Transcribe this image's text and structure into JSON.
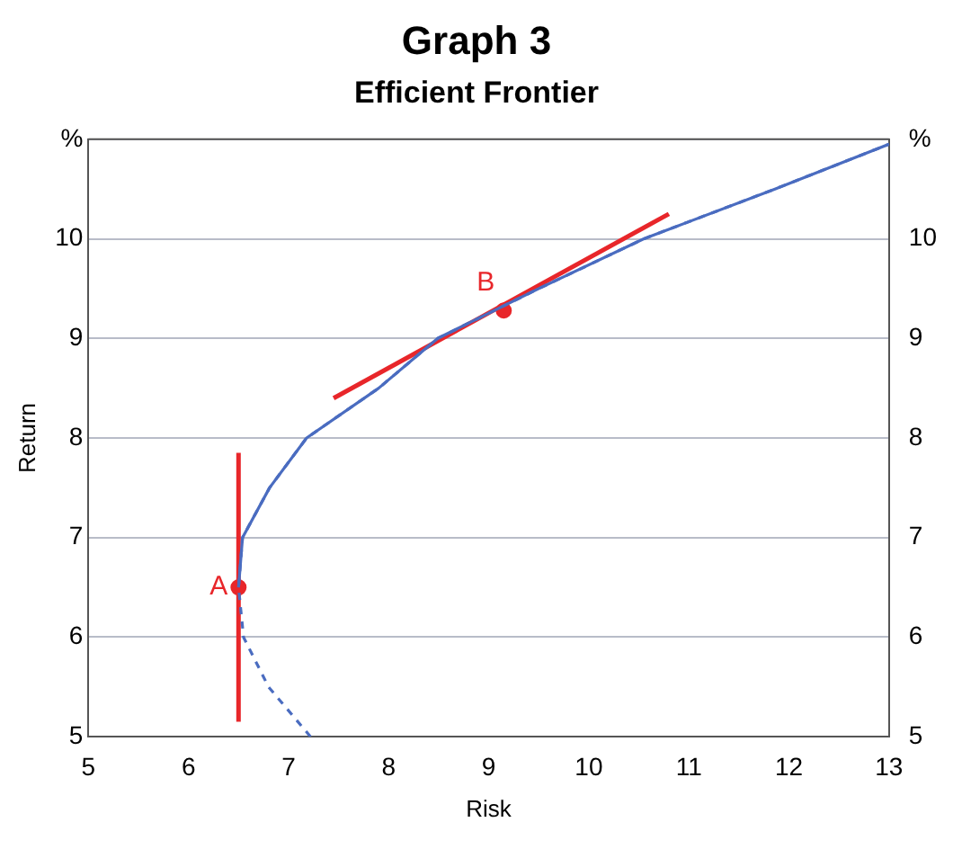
{
  "chart_data": {
    "type": "line",
    "title": "Graph 3",
    "subtitle": "Efficient Frontier",
    "xlabel": "Risk",
    "ylabel": "Return",
    "xlim": [
      5,
      13
    ],
    "xticks": [
      5,
      6,
      7,
      8,
      9,
      10,
      11,
      12,
      13
    ],
    "ylim": [
      5,
      11
    ],
    "yticks": [
      5,
      6,
      7,
      8,
      9,
      10,
      {
        "value": 11,
        "label": "%"
      }
    ],
    "y2lim": [
      5,
      11
    ],
    "y2ticks": [
      5,
      6,
      7,
      8,
      9,
      10,
      {
        "value": 11,
        "label": "%"
      }
    ],
    "grid": "y",
    "legend": false,
    "series": [
      {
        "type": "line",
        "color": "#4a6cc0",
        "line_style": "dashed",
        "x": [
          7.22,
          6.8,
          6.55,
          6.5,
          6.54,
          6.81,
          7.18,
          7.9,
          8.49,
          9.5,
          10.55,
          11.86,
          13
        ],
        "values": [
          5,
          5.5,
          6,
          6.5,
          7,
          7.5,
          8,
          8.5,
          9,
          9.5,
          10,
          10.5,
          10.95
        ]
      },
      {
        "type": "line",
        "color": "#4a6cc0",
        "line_style": "solid",
        "x": [
          6.5,
          6.54,
          6.81,
          7.18,
          7.9,
          8.49,
          9.5,
          10.55,
          11.86,
          13
        ],
        "values": [
          6.5,
          7,
          7.5,
          8,
          8.5,
          9,
          9.5,
          10,
          10.5,
          10.95
        ]
      },
      {
        "type": "line",
        "color": "#e8262a",
        "line_style": "solid",
        "x": [
          6.5,
          6.5
        ],
        "values": [
          5.15,
          7.85
        ]
      },
      {
        "type": "line",
        "color": "#e8262a",
        "line_style": "solid",
        "x": [
          7.45,
          10.8
        ],
        "values": [
          8.4,
          10.25
        ]
      },
      {
        "type": "scatter",
        "color": "#e8262a",
        "marker": "circle",
        "x": [
          6.5
        ],
        "values": [
          6.5
        ]
      },
      {
        "type": "scatter",
        "color": "#e8262a",
        "marker": "circle",
        "x": [
          9.15
        ],
        "values": [
          9.28
        ]
      }
    ],
    "annotations": [
      {
        "text": "A",
        "x": 6.5,
        "y": 6.5
      },
      {
        "text": "B",
        "x": 9.15,
        "y": 9.28
      }
    ]
  }
}
